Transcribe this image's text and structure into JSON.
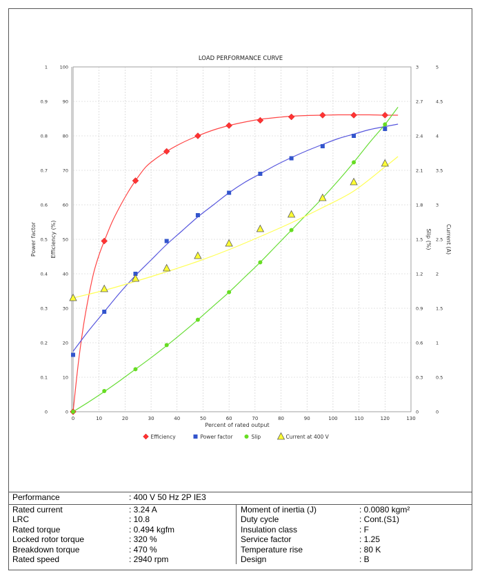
{
  "chart_data": {
    "type": "line",
    "title": "LOAD PERFORMANCE CURVE",
    "xlabel": "Percent of rated output",
    "xlim": [
      0,
      130
    ],
    "x_ticks": [
      "0",
      "10",
      "20",
      "30",
      "40",
      "50",
      "60",
      "70",
      "80",
      "90",
      "100",
      "110",
      "120",
      "130"
    ],
    "grid": true,
    "legend_position": "bottom",
    "axes": {
      "power_factor": {
        "label": "Power factor",
        "lim": [
          0,
          1
        ],
        "ticks": [
          "0",
          "0.1",
          "0.2",
          "0.3",
          "0.4",
          "0.5",
          "0.6",
          "0.7",
          "0.8",
          "0.9",
          "1"
        ]
      },
      "efficiency": {
        "label": "Efficiency (%)",
        "lim": [
          0,
          100
        ],
        "ticks": [
          "0",
          "10",
          "20",
          "30",
          "40",
          "50",
          "60",
          "70",
          "80",
          "90",
          "100"
        ]
      },
      "slip": {
        "label": "Slip (%)",
        "lim": [
          0,
          3
        ],
        "ticks": [
          "0",
          "0.3",
          "0.6",
          "0.9",
          "1.2",
          "1.5",
          "1.8",
          "2.1",
          "2.4",
          "2.7",
          "3"
        ]
      },
      "current": {
        "label": "Current (A)",
        "lim": [
          0,
          5
        ],
        "ticks": [
          "0",
          "0.5",
          "1",
          "1.5",
          "2",
          "2.5",
          "3",
          "3.5",
          "4",
          "4.5",
          "5"
        ]
      }
    },
    "series": [
      {
        "name": "Efficiency",
        "axis": "efficiency",
        "color": "#ff3333",
        "line_color": "#ff4444",
        "marker": "diamond",
        "x": [
          0,
          12,
          24,
          36,
          48,
          60,
          72,
          84,
          96,
          108,
          120
        ],
        "y": [
          0,
          49.5,
          67,
          75.5,
          80,
          83,
          84.5,
          85.5,
          86,
          86,
          86
        ],
        "curve_x": [
          0,
          2,
          4,
          6,
          8,
          10,
          12,
          15,
          18,
          21,
          24,
          28,
          32,
          36,
          42,
          48,
          54,
          60,
          66,
          72,
          78,
          84,
          90,
          96,
          102,
          108,
          114,
          120,
          125
        ],
        "curve_y": [
          0,
          14,
          25,
          33.5,
          40.5,
          45.5,
          49.5,
          55,
          59.5,
          63.5,
          67,
          71,
          73.5,
          75.5,
          78,
          80,
          81.7,
          83,
          84,
          84.8,
          85.3,
          85.7,
          85.9,
          86,
          86.1,
          86.1,
          86.1,
          86,
          86
        ]
      },
      {
        "name": "Power factor",
        "axis": "power_factor",
        "color": "#3355cc",
        "line_color": "#5555dd",
        "marker": "square",
        "x": [
          0,
          12,
          24,
          36,
          48,
          60,
          72,
          84,
          96,
          108,
          120
        ],
        "y": [
          0.165,
          0.29,
          0.4,
          0.495,
          0.57,
          0.635,
          0.69,
          0.735,
          0.77,
          0.8,
          0.82
        ],
        "curve_x": [
          0,
          6,
          12,
          18,
          24,
          30,
          36,
          42,
          48,
          54,
          60,
          66,
          72,
          78,
          84,
          90,
          96,
          102,
          108,
          114,
          120,
          125
        ],
        "curve_y": [
          0.175,
          0.235,
          0.29,
          0.345,
          0.395,
          0.44,
          0.485,
          0.525,
          0.565,
          0.6,
          0.635,
          0.665,
          0.69,
          0.715,
          0.737,
          0.757,
          0.775,
          0.792,
          0.805,
          0.818,
          0.827,
          0.834
        ]
      },
      {
        "name": "Slip",
        "axis": "slip",
        "color": "#66dd22",
        "line_color": "#66dd33",
        "marker": "circle",
        "x": [
          0,
          12,
          24,
          36,
          48,
          60,
          72,
          84,
          96,
          108,
          120
        ],
        "y": [
          0,
          0.18,
          0.37,
          0.58,
          0.8,
          1.04,
          1.3,
          1.58,
          1.86,
          2.17,
          2.5
        ],
        "curve_x": [
          0,
          6,
          12,
          18,
          24,
          30,
          36,
          42,
          48,
          54,
          60,
          66,
          72,
          78,
          84,
          90,
          96,
          102,
          108,
          114,
          120,
          125
        ],
        "curve_y": [
          0,
          0.085,
          0.175,
          0.27,
          0.37,
          0.47,
          0.575,
          0.685,
          0.8,
          0.92,
          1.04,
          1.17,
          1.3,
          1.44,
          1.58,
          1.72,
          1.86,
          2.01,
          2.17,
          2.34,
          2.5,
          2.65
        ]
      },
      {
        "name": "Current at 400 V",
        "axis": "current",
        "color": "#ffff33",
        "line_color": "#ffff55",
        "marker": "triangle",
        "x": [
          0,
          12,
          24,
          36,
          48,
          60,
          72,
          84,
          96,
          108,
          120
        ],
        "y": [
          1.65,
          1.78,
          1.93,
          2.08,
          2.26,
          2.44,
          2.65,
          2.86,
          3.1,
          3.33,
          3.6
        ],
        "curve_x": [
          0,
          12,
          24,
          36,
          48,
          60,
          72,
          84,
          96,
          108,
          120,
          125
        ],
        "curve_y": [
          1.65,
          1.76,
          1.89,
          2.03,
          2.18,
          2.35,
          2.54,
          2.74,
          2.96,
          3.2,
          3.55,
          3.7
        ]
      }
    ]
  },
  "performance": {
    "label": "Performance",
    "value": ": 400 V 50 Hz 2P IE3"
  },
  "specs_left": [
    {
      "label": "Rated current",
      "value": ": 3.24 A"
    },
    {
      "label": "LRC",
      "value": ": 10.8"
    },
    {
      "label": "Rated torque",
      "value": ": 0.494 kgfm"
    },
    {
      "label": "Locked rotor torque",
      "value": ": 320 %"
    },
    {
      "label": "Breakdown torque",
      "value": ": 470 %"
    },
    {
      "label": "Rated speed",
      "value": ": 2940 rpm"
    }
  ],
  "specs_right": [
    {
      "label": "Moment of inertia (J)",
      "value": ": 0.0080 kgm²"
    },
    {
      "label": "Duty cycle",
      "value": ": Cont.(S1)"
    },
    {
      "label": "Insulation class",
      "value": ": F"
    },
    {
      "label": "Service factor",
      "value": ": 1.25"
    },
    {
      "label": "Temperature rise",
      "value": ": 80 K"
    },
    {
      "label": "Design",
      "value": ": B"
    }
  ]
}
